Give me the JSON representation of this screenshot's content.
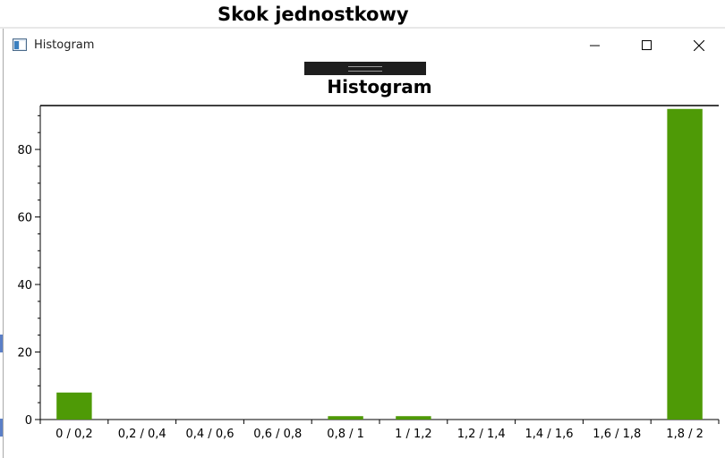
{
  "background": {
    "title": "Skok jednostkowy"
  },
  "window": {
    "title": "Histogram",
    "controls": {
      "minimize": "minimize-icon",
      "maximize": "maximize-icon",
      "close": "close-icon"
    }
  },
  "colors": {
    "bar": "#4e9a06",
    "axis": "#000000"
  },
  "chart_data": {
    "type": "bar",
    "title": "Histogram",
    "xlabel": "",
    "ylabel": "",
    "categories": [
      "0 / 0,2",
      "0,2 / 0,4",
      "0,4 / 0,6",
      "0,6 / 0,8",
      "0,8 / 1",
      "1 / 1,2",
      "1,2 / 1,4",
      "1,4 / 1,6",
      "1,6 / 1,8",
      "1,8 / 2"
    ],
    "values": [
      8,
      0,
      0,
      0,
      1,
      1,
      0,
      0,
      0,
      92
    ],
    "ylim": [
      0,
      93
    ],
    "yticks": [
      "0",
      "20",
      "40",
      "60",
      "80"
    ],
    "grid": false,
    "legend": "none"
  }
}
